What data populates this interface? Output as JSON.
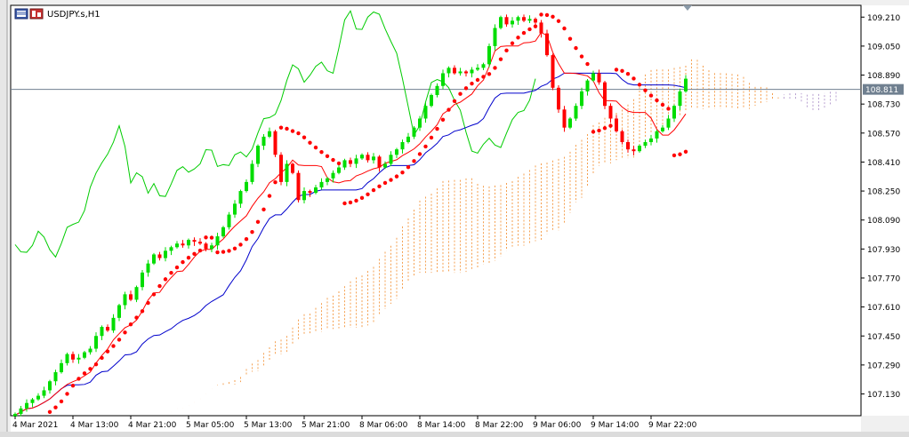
{
  "window": {
    "symbol_title": "USDJPY.s,H1"
  },
  "chart_data": {
    "type": "candlestick",
    "title": "USDJPY.s,H1",
    "current_price": "108.811",
    "current_price_value": 108.811,
    "ylim": [
      107.01,
      109.275
    ],
    "y_ticks": [
      "109.210",
      "109.050",
      "108.890",
      "108.730",
      "108.570",
      "108.410",
      "108.250",
      "108.090",
      "107.930",
      "107.770",
      "107.610",
      "107.450",
      "107.290",
      "107.130"
    ],
    "x_ticks": [
      "4 Mar 2021",
      "4 Mar 13:00",
      "4 Mar 21:00",
      "5 Mar 05:00",
      "5 Mar 13:00",
      "5 Mar 21:00",
      "8 Mar 06:00",
      "8 Mar 14:00",
      "8 Mar 22:00",
      "9 Mar 06:00",
      "9 Mar 14:00",
      "9 Mar 22:00"
    ],
    "colors": {
      "bull": "#00dd00",
      "bear": "#ff0000",
      "tenkan": "#ff0000",
      "kijun": "#0000cc",
      "chikou": "#00cc00",
      "sar": "#ff0000",
      "cloud": "#f5a050",
      "cloud_alt": "#b8a0d0",
      "price_line": "#708090"
    },
    "closes": [
      107.02,
      107.05,
      107.08,
      107.1,
      107.12,
      107.15,
      107.2,
      107.25,
      107.3,
      107.35,
      107.32,
      107.33,
      107.36,
      107.38,
      107.45,
      107.5,
      107.48,
      107.55,
      107.62,
      107.68,
      107.65,
      107.72,
      107.8,
      107.85,
      107.9,
      107.88,
      107.92,
      107.94,
      107.96,
      107.95,
      107.98,
      107.97,
      107.96,
      107.93,
      107.95,
      108.0,
      108.05,
      108.12,
      108.18,
      108.25,
      108.3,
      108.4,
      108.5,
      108.55,
      108.58,
      108.45,
      108.3,
      108.4,
      108.35,
      108.2,
      108.25,
      108.24,
      108.27,
      108.3,
      108.32,
      108.35,
      108.38,
      108.42,
      108.4,
      108.43,
      108.45,
      108.42,
      108.44,
      108.38,
      108.4,
      108.45,
      108.48,
      108.52,
      108.55,
      108.6,
      108.65,
      108.72,
      108.78,
      108.83,
      108.9,
      108.93,
      108.9,
      108.91,
      108.9,
      108.92,
      108.93,
      108.95,
      109.05,
      109.15,
      109.21,
      109.17,
      109.19,
      109.21,
      109.19,
      109.2,
      109.18,
      109.12,
      109.0,
      108.82,
      108.7,
      108.6,
      108.65,
      108.72,
      108.8,
      108.86,
      108.9,
      108.85,
      108.72,
      108.65,
      108.58,
      108.52,
      108.48,
      108.47,
      108.5,
      108.52,
      108.54,
      108.58,
      108.6,
      108.65,
      108.72,
      108.8,
      108.87
    ]
  }
}
